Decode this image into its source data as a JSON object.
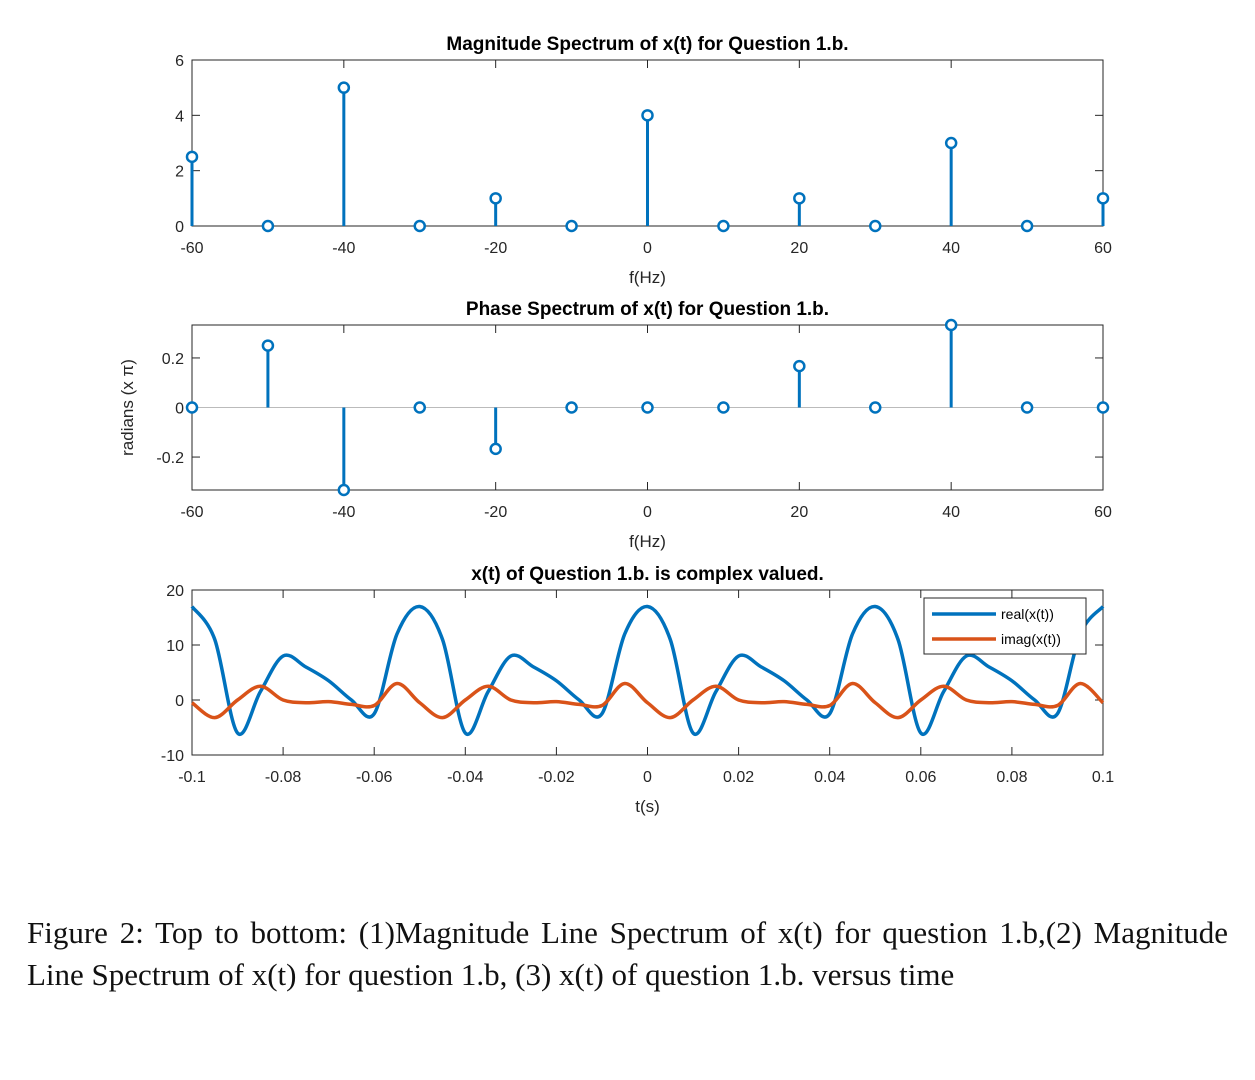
{
  "chart_data": [
    {
      "type": "stem",
      "title": "Magnitude Spectrum of x(t) for Question 1.b.",
      "xlabel": "f(Hz)",
      "ylabel": "",
      "xlim": [
        -60,
        60
      ],
      "ylim": [
        0,
        6
      ],
      "xticks": [
        -60,
        -40,
        -20,
        0,
        20,
        40,
        60
      ],
      "yticks": [
        0,
        2,
        4,
        6
      ],
      "x": [
        -60,
        -50,
        -40,
        -30,
        -20,
        -10,
        0,
        10,
        20,
        30,
        40,
        50,
        60
      ],
      "values": [
        2.5,
        0,
        5,
        0,
        1,
        0,
        4,
        0,
        1,
        0,
        3,
        0,
        1
      ],
      "color": "#0072BD",
      "grid": false
    },
    {
      "type": "stem",
      "title": "Phase Spectrum of x(t) for Question 1.b.",
      "xlabel": "f(Hz)",
      "ylabel": "radians (x π)",
      "xlim": [
        -60,
        60
      ],
      "ylim": [
        -0.333,
        0.333
      ],
      "xticks": [
        -60,
        -40,
        -20,
        0,
        20,
        40,
        60
      ],
      "yticks": [
        -0.2,
        0,
        0.2
      ],
      "x": [
        -60,
        -50,
        -40,
        -30,
        -20,
        -10,
        0,
        10,
        20,
        30,
        40,
        50,
        60
      ],
      "values": [
        0,
        0.25,
        -0.333,
        0,
        -0.167,
        0,
        0,
        0,
        0.167,
        0,
        0.333,
        0,
        0
      ],
      "color": "#0072BD",
      "grid": false
    },
    {
      "type": "line",
      "title": "x(t) of Question 1.b. is complex valued.",
      "xlabel": "t(s)",
      "ylabel": "",
      "xlim": [
        -0.1,
        0.1
      ],
      "ylim": [
        -10,
        20
      ],
      "xticks": [
        -0.1,
        -0.08,
        -0.06,
        -0.04,
        -0.02,
        0,
        0.02,
        0.04,
        0.06,
        0.08,
        0.1
      ],
      "yticks": [
        -10,
        0,
        10,
        20
      ],
      "legend_position": "top-right",
      "x": [
        -0.1,
        -0.095,
        -0.09,
        -0.085,
        -0.08,
        -0.075,
        -0.07,
        -0.065,
        -0.06,
        -0.055,
        -0.05,
        -0.045,
        -0.04,
        -0.035,
        -0.03,
        -0.025,
        -0.02,
        -0.015,
        -0.01,
        -0.005,
        0,
        0.005,
        0.01,
        0.015,
        0.02,
        0.025,
        0.03,
        0.035,
        0.04,
        0.045,
        0.05,
        0.055,
        0.06,
        0.065,
        0.07,
        0.075,
        0.08,
        0.085,
        0.09,
        0.095,
        0.1
      ],
      "series": [
        {
          "name": "real(x(t))",
          "color": "#0072BD",
          "values": [
            17,
            11,
            -6,
            1.5,
            8,
            6,
            3.5,
            0,
            -2.5,
            12,
            17,
            11,
            -6,
            1.5,
            8,
            6,
            3.5,
            0,
            -2.5,
            12,
            17,
            11,
            -6,
            1.5,
            8,
            6,
            3.5,
            0,
            -2.5,
            12,
            17,
            11,
            -6,
            1.5,
            8,
            6,
            3.5,
            0,
            -2.5,
            12,
            17
          ]
        },
        {
          "name": "imag(x(t))",
          "color": "#D95319",
          "values": [
            -0.5,
            -3.2,
            0,
            2.5,
            0,
            -0.5,
            -0.3,
            -0.8,
            -1,
            3,
            -0.5,
            -3.2,
            0,
            2.5,
            0,
            -0.5,
            -0.3,
            -0.8,
            -1,
            3,
            -0.5,
            -3.2,
            0,
            2.5,
            0,
            -0.5,
            -0.3,
            -0.8,
            -1,
            3,
            -0.5,
            -3.2,
            0,
            2.5,
            0,
            -0.5,
            -0.3,
            -0.8,
            -1,
            3,
            -0.5
          ]
        }
      ],
      "grid": false
    }
  ],
  "caption": "Figure 2: Top to bottom: (1)Magnitude Line Spectrum of x(t) for question 1.b,(2) Magnitude Line Spectrum of x(t) for question 1.b, (3) x(t) of question 1.b. versus time"
}
